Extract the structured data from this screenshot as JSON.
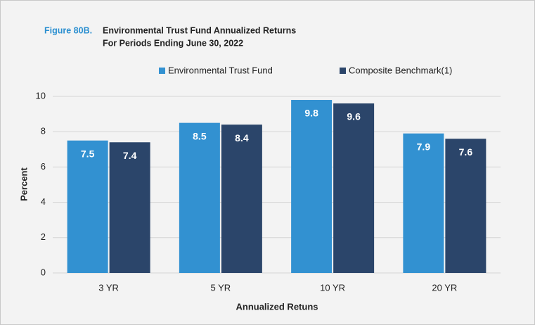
{
  "chart_data": {
    "type": "bar",
    "figure_label": "Figure 80B.",
    "title": "Environmental Trust Fund Annualized Returns",
    "subtitle": "For Periods Ending June 30, 2022",
    "categories": [
      "3 YR",
      "5 YR",
      "10 YR",
      "20 YR"
    ],
    "series": [
      {
        "name": "Environmental Trust Fund",
        "color": "#3291d1",
        "values": [
          7.5,
          8.5,
          9.8,
          7.9
        ]
      },
      {
        "name": "Composite Benchmark(1)",
        "color": "#2b456a",
        "values": [
          7.4,
          8.4,
          9.6,
          7.6
        ]
      }
    ],
    "ylim": [
      0,
      10
    ],
    "yticks": [
      0,
      2,
      4,
      6,
      8,
      10
    ],
    "grid": true,
    "y_label": "Percent",
    "x_label": "Annualized Retuns",
    "legend": "top"
  }
}
